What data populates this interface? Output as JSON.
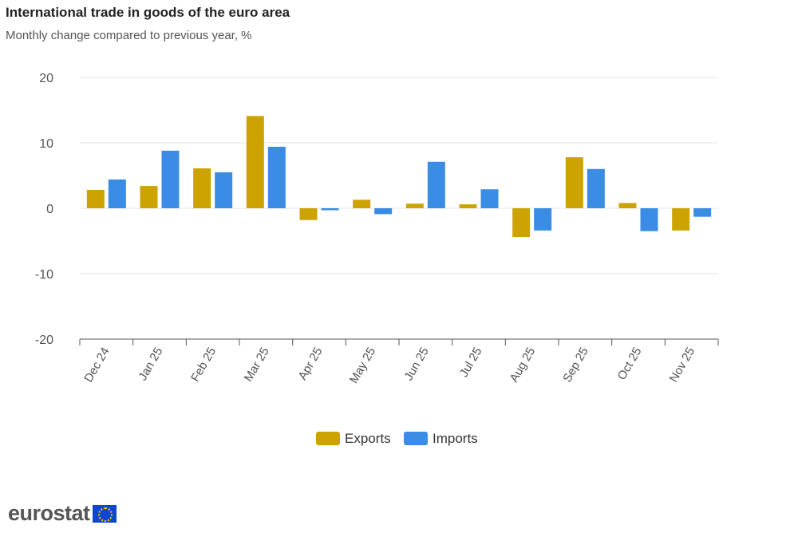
{
  "chart_data": {
    "type": "bar",
    "title": "International trade in goods of the euro area",
    "subtitle": "Monthly change compared to previous year, %",
    "categories": [
      "Dec 24",
      "Jan 25",
      "Feb 25",
      "Mar 25",
      "Apr 25",
      "May 25",
      "Jun 25",
      "Jul 25",
      "Aug 25",
      "Sep 25",
      "Oct 25",
      "Nov 25"
    ],
    "series": [
      {
        "name": "Exports",
        "color": "#cca300",
        "values": [
          2.8,
          3.4,
          6.1,
          14.1,
          -1.8,
          1.3,
          0.7,
          0.6,
          -4.4,
          7.8,
          0.8,
          -3.4
        ]
      },
      {
        "name": "Imports",
        "color": "#3a8ce4",
        "values": [
          4.4,
          8.8,
          5.5,
          9.4,
          -0.3,
          -0.9,
          7.1,
          2.9,
          -3.4,
          6.0,
          -3.5,
          -1.3
        ]
      }
    ],
    "ylim": [
      -20,
      20
    ],
    "yticks": [
      "20",
      "10",
      "0",
      "-10",
      "-20"
    ],
    "grid": true,
    "legend": "bottom-center"
  },
  "brand": "eurostat"
}
